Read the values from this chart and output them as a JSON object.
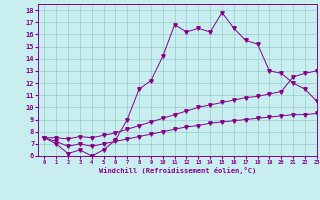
{
  "x": [
    0,
    1,
    2,
    3,
    4,
    5,
    6,
    7,
    8,
    9,
    10,
    11,
    12,
    13,
    14,
    15,
    16,
    17,
    18,
    19,
    20,
    21,
    22,
    23
  ],
  "y_temp": [
    7.5,
    7.0,
    6.2,
    6.5,
    6.0,
    6.5,
    7.3,
    9.0,
    11.5,
    12.2,
    14.2,
    16.8,
    16.2,
    16.5,
    16.2,
    17.8,
    16.5,
    15.5,
    15.2,
    13.0,
    12.8,
    12.0,
    11.5,
    10.5
  ],
  "y_lower": [
    7.5,
    7.2,
    6.8,
    7.0,
    6.8,
    7.0,
    7.2,
    7.4,
    7.6,
    7.8,
    8.0,
    8.2,
    8.4,
    8.5,
    8.7,
    8.8,
    8.9,
    9.0,
    9.1,
    9.2,
    9.3,
    9.4,
    9.4,
    9.5
  ],
  "y_upper": [
    7.5,
    7.5,
    7.4,
    7.6,
    7.5,
    7.7,
    7.9,
    8.2,
    8.5,
    8.8,
    9.1,
    9.4,
    9.7,
    10.0,
    10.2,
    10.4,
    10.6,
    10.8,
    10.9,
    11.1,
    11.3,
    12.5,
    12.8,
    13.0
  ],
  "line_color": "#880088",
  "bg_color": "#c8eef0",
  "grid_color": "#99cccc",
  "xlabel": "Windchill (Refroidissement éolien,°C)",
  "ylim": [
    6,
    18.5
  ],
  "xlim": [
    -0.5,
    23
  ],
  "yticks": [
    6,
    7,
    8,
    9,
    10,
    11,
    12,
    13,
    14,
    15,
    16,
    17,
    18
  ],
  "xticks": [
    0,
    1,
    2,
    3,
    4,
    5,
    6,
    7,
    8,
    9,
    10,
    11,
    12,
    13,
    14,
    15,
    16,
    17,
    18,
    19,
    20,
    21,
    22,
    23
  ]
}
